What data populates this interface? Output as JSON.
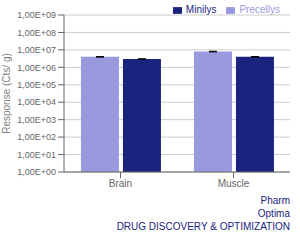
{
  "chart_data": {
    "type": "bar",
    "ylabel": "Response (Cts/ g)",
    "categories": [
      "Brain",
      "Muscle"
    ],
    "series": [
      {
        "name": "Precellys",
        "color": "#9999dd",
        "values": [
          4000000.0,
          8000000.0
        ],
        "errors": [
          150000.0,
          350000.0
        ]
      },
      {
        "name": "Minilys",
        "color": "#1a237e",
        "values": [
          3000000.0,
          4000000.0
        ],
        "errors": [
          80000.0,
          180000.0
        ]
      }
    ],
    "log": "y",
    "ylim": [
      1,
      1000000000.0
    ],
    "yticks": [
      {
        "value": 1,
        "label": "1,00E+00"
      },
      {
        "value": 10,
        "label": "1,00E+01"
      },
      {
        "value": 100,
        "label": "1,00E+02"
      },
      {
        "value": 1000,
        "label": "1,00E+03"
      },
      {
        "value": 10000,
        "label": "1,00E+04"
      },
      {
        "value": 100000,
        "label": "1,00E+05"
      },
      {
        "value": 1000000,
        "label": "1,00E+06"
      },
      {
        "value": 10000000,
        "label": "1,00E+07"
      },
      {
        "value": 100000000,
        "label": "1,00E+08"
      },
      {
        "value": 1000000000,
        "label": "1,00E+09"
      }
    ],
    "grid": true,
    "legend": "upper right",
    "annotations": [
      "Pharm",
      "Optima",
      "DRUG DISCOVERY & OPTIMIZATION"
    ]
  }
}
